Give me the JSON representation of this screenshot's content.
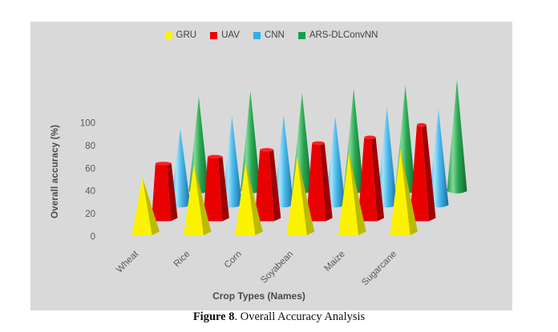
{
  "chart_data": {
    "type": "bar",
    "bar_style": "3d-cones",
    "title": "",
    "categories": [
      "Wheat",
      "Rice",
      "Corn",
      "Soyabean",
      "Maize",
      "Sugarcane"
    ],
    "series": [
      {
        "name": "GRU",
        "shape": "pyramid",
        "color": "#FCF300",
        "side_color": "#BCBA00",
        "values": [
          51,
          63,
          64,
          70,
          73,
          76
        ]
      },
      {
        "name": "UAV",
        "shape": "truncated-cone",
        "color": "#E90000",
        "side_color": "#9E0000",
        "top_color": "#FB2020",
        "values": [
          50,
          56,
          62,
          68,
          73,
          84
        ]
      },
      {
        "name": "CNN",
        "shape": "cone",
        "color": "#2BB0E8",
        "gradient": [
          "#2E9FD6",
          "#A8E2FB",
          "#49B9EB",
          "#176C9E"
        ],
        "values": [
          69,
          80,
          81,
          80,
          88,
          86
        ]
      },
      {
        "name": "ARS-DLConvNN",
        "shape": "cone",
        "color": "#12A150",
        "gradient": [
          "#1F9A49",
          "#84D898",
          "#2AA953",
          "#0E6A2E"
        ],
        "values": [
          85,
          90,
          88,
          92,
          95,
          100
        ]
      }
    ],
    "xlabel": "Crop Types (Names)",
    "ylabel": "Overall accuracy (%)",
    "yticks": [
      0,
      20,
      40,
      60,
      80,
      100
    ],
    "ylim": [
      0,
      100
    ],
    "legend_position": "top-center",
    "grid": false,
    "plot_background": "#D9D9D9",
    "page_background": "#FFFFFF",
    "label_color": "#595959"
  },
  "caption": {
    "label": "Figure 8",
    "text": ". Overall Accuracy Analysis"
  }
}
